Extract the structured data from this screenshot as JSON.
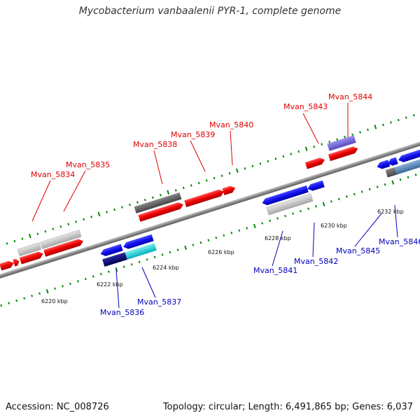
{
  "title": "Mycobacterium vanbaalenii PYR-1, complete genome",
  "accession": "Accession: NC_008726",
  "topology": "Topology: circular; Length: 6,491,865 bp; Genes: 6,037",
  "colors": {
    "forward_label": "#dd0000",
    "reverse_label": "#0000bb",
    "backbone": "#8a8a8a",
    "tick": "#008800"
  },
  "scale_labels": [
    "6220 kbp",
    "6222 kbp",
    "6224 kbp",
    "6226 kbp",
    "6228 kbp",
    "6230 kbp",
    "6232 kbp"
  ],
  "forward_genes": [
    "Mvan_5834",
    "Mvan_5835",
    "Mvan_5838",
    "Mvan_5839",
    "Mvan_5840",
    "Mvan_5843",
    "Mvan_5844"
  ],
  "reverse_genes": [
    "Mvan_5836",
    "Mvan_5837",
    "Mvan_5841",
    "Mvan_5842",
    "Mvan_5845",
    "Mvan_5846"
  ]
}
